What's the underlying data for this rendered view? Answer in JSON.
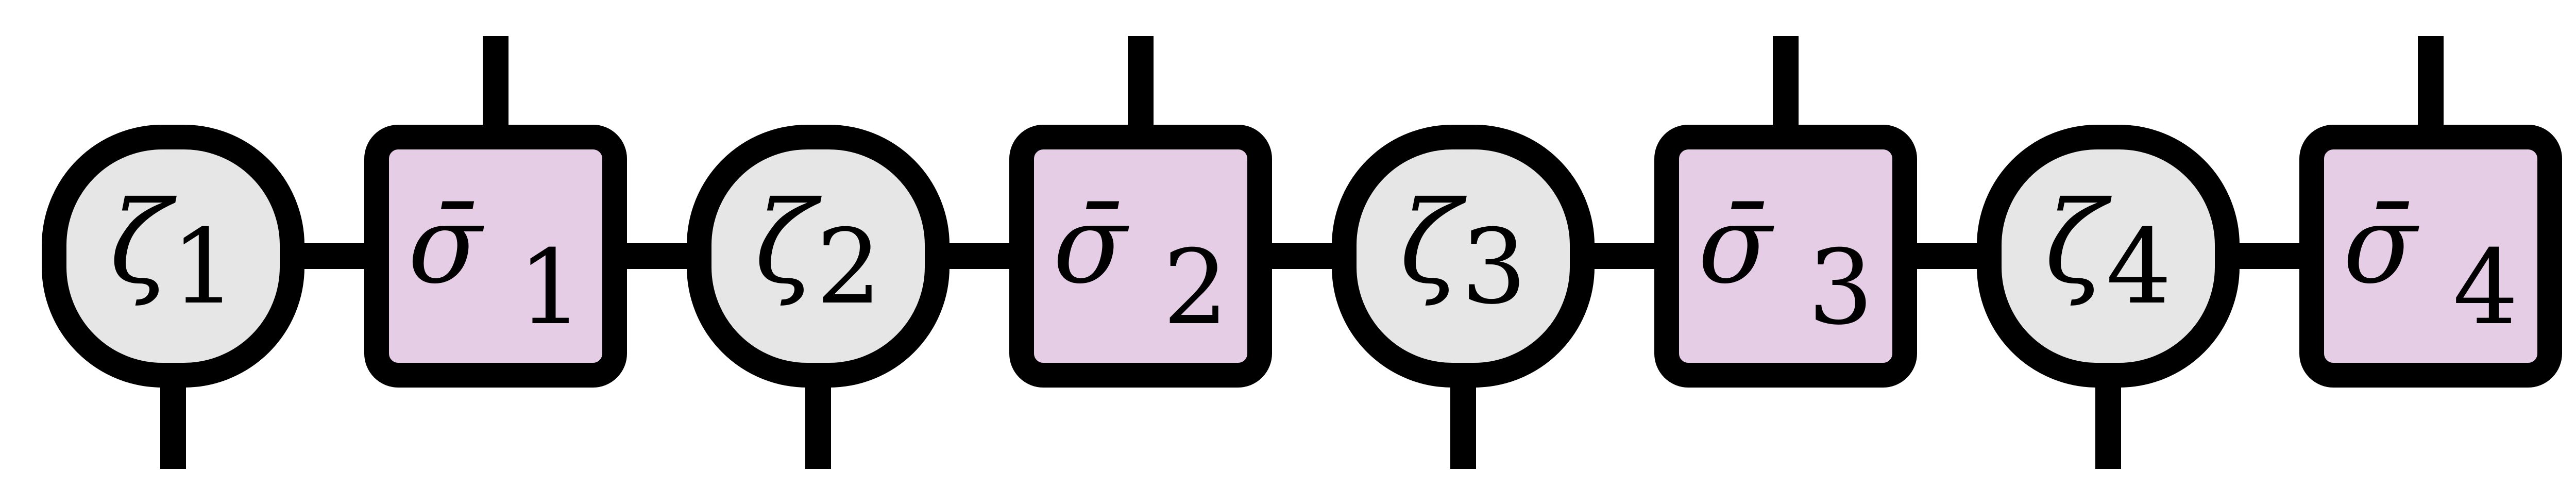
{
  "colors": {
    "stroke": "#000000",
    "circle_fill": "#e6e6e6",
    "square_fill": "#e6cde6"
  },
  "nodes": [
    {
      "kind": "circle",
      "symbol": "ζ",
      "index": "1"
    },
    {
      "kind": "square",
      "symbol": "σ̄",
      "index": "1"
    },
    {
      "kind": "circle",
      "symbol": "ζ",
      "index": "2"
    },
    {
      "kind": "square",
      "symbol": "σ̄",
      "index": "2"
    },
    {
      "kind": "circle",
      "symbol": "ζ",
      "index": "3"
    },
    {
      "kind": "square",
      "symbol": "σ̄",
      "index": "3"
    },
    {
      "kind": "circle",
      "symbol": "ζ",
      "index": "4"
    },
    {
      "kind": "square",
      "symbol": "σ̄",
      "index": "4"
    }
  ]
}
